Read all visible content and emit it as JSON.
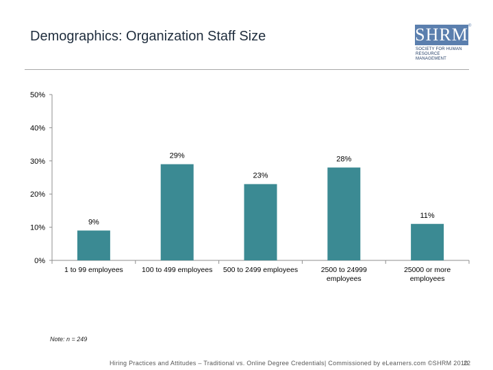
{
  "slide": {
    "title": "Demographics: Organization Staff Size",
    "note": "Note: n = 249",
    "footer": "Hiring Practices and Attitudes – Traditional vs. Online Degree Credentials| Commissioned by eLearners.com ©SHRM 2010",
    "page_number": "22"
  },
  "logo": {
    "letters": "SHRM",
    "registered": "®",
    "line1": "Society for Human",
    "line2": "Resource Management",
    "color": "#5b7fae"
  },
  "chart_data": {
    "type": "bar",
    "title": "",
    "xlabel": "",
    "ylabel": "",
    "categories": [
      "1 to 99 employees",
      "100 to 499 employees",
      "500 to 2499 employees",
      "2500 to 24999 employees",
      "25000 or more employees"
    ],
    "category_lines": [
      [
        "1 to 99 employees"
      ],
      [
        "100 to 499 employees"
      ],
      [
        "500 to 2499 employees"
      ],
      [
        "2500 to 24999",
        "employees"
      ],
      [
        "25000 or more",
        "employees"
      ]
    ],
    "values": [
      9,
      29,
      23,
      28,
      11
    ],
    "value_labels": [
      "9%",
      "29%",
      "23%",
      "28%",
      "11%"
    ],
    "ylim": [
      0,
      50
    ],
    "yticks": [
      0,
      10,
      20,
      30,
      40,
      50
    ],
    "ytick_labels": [
      "0%",
      "10%",
      "20%",
      "30%",
      "40%",
      "50%"
    ],
    "bar_color": "#3b8a93",
    "grid": false,
    "legend": "none"
  }
}
